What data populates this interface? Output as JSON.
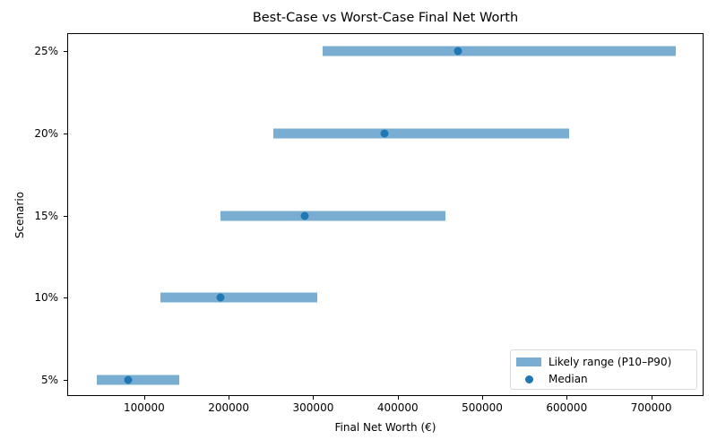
{
  "chart_data": {
    "type": "range_dot",
    "title": "Best-Case vs Worst-Case Final Net Worth",
    "xlabel": "Final Net Worth (€)",
    "ylabel": "Scenario",
    "xlim": [
      10000,
      763000
    ],
    "xticks": [
      100000,
      200000,
      300000,
      400000,
      500000,
      600000,
      700000
    ],
    "xtick_labels": [
      "100000",
      "200000",
      "300000",
      "400000",
      "500000",
      "600000",
      "700000"
    ],
    "categories": [
      "5%",
      "10%",
      "15%",
      "20%",
      "25%"
    ],
    "series": [
      {
        "name": "Likely range (P10–P90)",
        "type": "range",
        "low": [
          44000,
          119000,
          190000,
          253000,
          311000
        ],
        "high": [
          141000,
          305000,
          456000,
          603000,
          729000
        ]
      },
      {
        "name": "Median",
        "type": "scatter",
        "values": [
          81000,
          190000,
          290000,
          384000,
          471000
        ]
      }
    ],
    "grid": false,
    "legend_position": "lower right",
    "colors": {
      "bar": "#1f77b4",
      "bar_alpha": 0.6,
      "median": "#1f77b4"
    }
  },
  "legend": {
    "range_label": "Likely range (P10–P90)",
    "median_label": "Median"
  }
}
